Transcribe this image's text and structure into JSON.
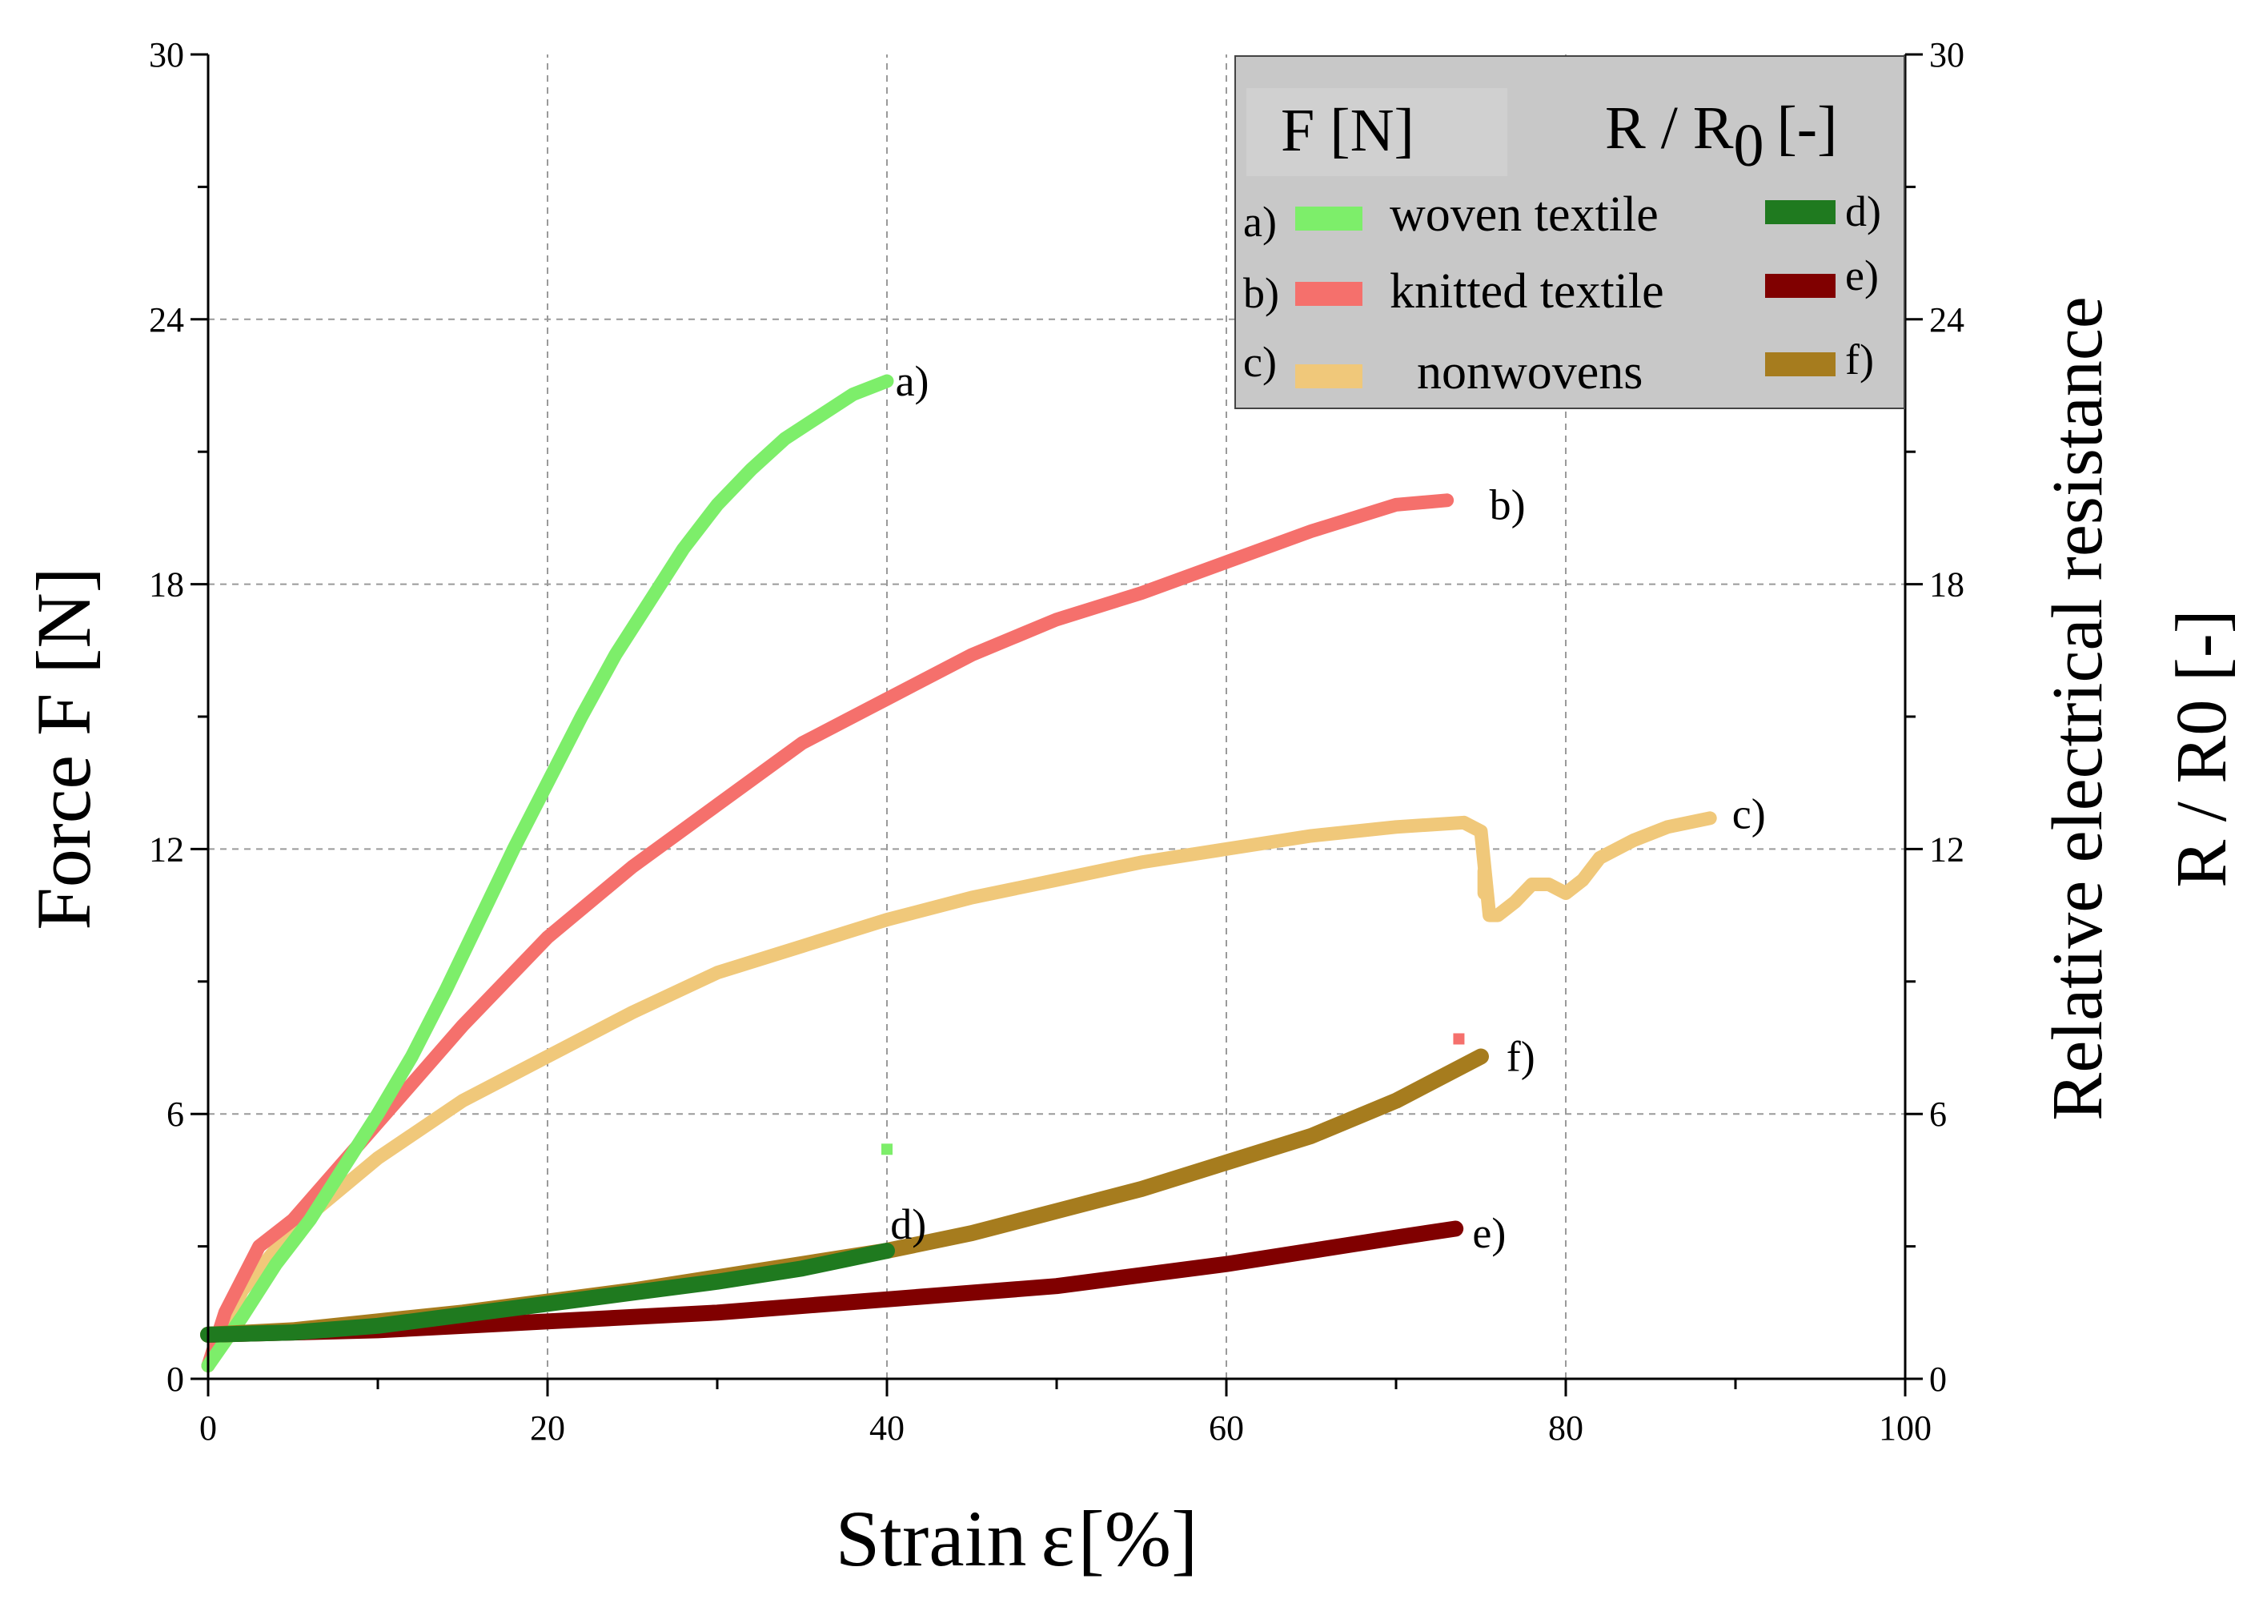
{
  "chart_data": {
    "type": "line",
    "xlabel": "Strain ε [%]",
    "xlabel_word": "Strain",
    "xlabel_symbol": "ε",
    "xlabel_unit": "[%]",
    "ylabel_left": "Force F [N]",
    "ylabel_right_line1": "Relative electrical resistance",
    "ylabel_right_line2": "R / R0 [-]",
    "xlim": [
      0,
      100
    ],
    "ylim_left": [
      0,
      30
    ],
    "ylim_right": [
      0,
      30
    ],
    "x_ticks": [
      "0",
      "20",
      "40",
      "60",
      "80",
      "100"
    ],
    "y_ticks_left": [
      "0",
      "6",
      "12",
      "18",
      "24",
      "30"
    ],
    "y_ticks_right": [
      "0",
      "6",
      "12",
      "18",
      "24",
      "30"
    ],
    "grid": true,
    "legend": {
      "position": "top-right",
      "header_left": "F [N]",
      "header_right_base": "R / R",
      "header_right_sub": "0",
      "header_right_unit": "[-]",
      "rows": [
        {
          "left_letter": "a)",
          "label": "woven textile",
          "right_letter": "d)"
        },
        {
          "left_letter": "b)",
          "label": "knitted textile",
          "right_letter": "e)"
        },
        {
          "left_letter": "c)",
          "label": "nonwovens",
          "right_letter": "f)"
        }
      ]
    },
    "series": [
      {
        "id": "a",
        "name": "woven textile",
        "axis": "F",
        "color": "#7dee6a",
        "x": [
          0,
          2,
          4,
          6,
          8,
          10,
          12,
          14,
          16,
          18,
          20,
          22,
          24,
          26,
          28,
          30,
          32,
          34,
          36,
          38,
          40
        ],
        "y": [
          0.3,
          1.4,
          2.6,
          3.6,
          4.8,
          6.0,
          7.3,
          8.8,
          10.4,
          12.0,
          13.5,
          15.0,
          16.4,
          17.6,
          18.8,
          19.8,
          20.6,
          21.3,
          21.8,
          22.3,
          22.6
        ]
      },
      {
        "id": "b",
        "name": "knitted textile",
        "axis": "F",
        "color": "#f5706c",
        "x": [
          0,
          1,
          3,
          5,
          10,
          15,
          20,
          25,
          30,
          35,
          40,
          45,
          50,
          55,
          60,
          65,
          70,
          73
        ],
        "y": [
          0.3,
          1.5,
          3.0,
          3.6,
          5.8,
          8.0,
          10.0,
          11.6,
          13.0,
          14.4,
          15.4,
          16.4,
          17.2,
          17.8,
          18.5,
          19.2,
          19.8,
          19.9
        ]
      },
      {
        "id": "c",
        "name": "nonwovens",
        "axis": "F",
        "color": "#f0c87a",
        "x": [
          0,
          2,
          5,
          10,
          15,
          20,
          25,
          30,
          35,
          40,
          45,
          50,
          55,
          60,
          65,
          70,
          74,
          75,
          75.5,
          76,
          77,
          78,
          79,
          80,
          81,
          82,
          84,
          86,
          88.5
        ],
        "y": [
          0.3,
          2.0,
          3.4,
          5.0,
          6.3,
          7.3,
          8.3,
          9.2,
          9.8,
          10.4,
          10.9,
          11.3,
          11.7,
          12.0,
          12.3,
          12.5,
          12.6,
          12.4,
          10.5,
          10.5,
          10.8,
          11.2,
          11.2,
          11.0,
          11.3,
          11.8,
          12.2,
          12.5,
          12.7
        ]
      },
      {
        "id": "c-mark",
        "name": "nonwovens break marker",
        "axis": "F",
        "color": "#f0c87a",
        "x": [
          75.2,
          75.2
        ],
        "y": [
          11.0,
          11.5
        ]
      },
      {
        "id": "d",
        "name": "woven textile R/R0",
        "axis": "R",
        "color": "#1f7a1f",
        "x": [
          0,
          5,
          10,
          15,
          20,
          25,
          30,
          35,
          40
        ],
        "y": [
          1.0,
          1.05,
          1.2,
          1.45,
          1.7,
          1.95,
          2.2,
          2.5,
          2.9
        ]
      },
      {
        "id": "e",
        "name": "knitted textile R/R0",
        "axis": "R",
        "color": "#800000",
        "x": [
          0,
          10,
          20,
          30,
          40,
          50,
          60,
          70,
          73.5
        ],
        "y": [
          1.0,
          1.1,
          1.3,
          1.5,
          1.8,
          2.1,
          2.6,
          3.2,
          3.4
        ]
      },
      {
        "id": "f",
        "name": "nonwovens R/R0",
        "axis": "R",
        "color": "#a67c1e",
        "x": [
          0,
          5,
          10,
          15,
          20,
          25,
          30,
          35,
          40,
          45,
          50,
          55,
          60,
          65,
          70,
          75
        ],
        "y": [
          1.0,
          1.1,
          1.3,
          1.5,
          1.75,
          2.0,
          2.3,
          2.6,
          2.9,
          3.3,
          3.8,
          4.3,
          4.9,
          5.5,
          6.3,
          7.3
        ]
      }
    ],
    "stray_marks": [
      {
        "x": 40,
        "y": 5.2,
        "color": "#7dee6a"
      },
      {
        "x": 73.7,
        "y": 7.7,
        "color": "#f5706c"
      }
    ],
    "end_labels": [
      {
        "text": "a)",
        "x": 40.5,
        "y": 22.6
      },
      {
        "text": "b)",
        "x": 75.5,
        "y": 19.8
      },
      {
        "text": "c)",
        "x": 89.8,
        "y": 12.8
      },
      {
        "text": "d)",
        "x": 40.2,
        "y": 3.5
      },
      {
        "text": "e)",
        "x": 74.5,
        "y": 3.3
      },
      {
        "text": "f)",
        "x": 76.5,
        "y": 7.3
      }
    ]
  }
}
